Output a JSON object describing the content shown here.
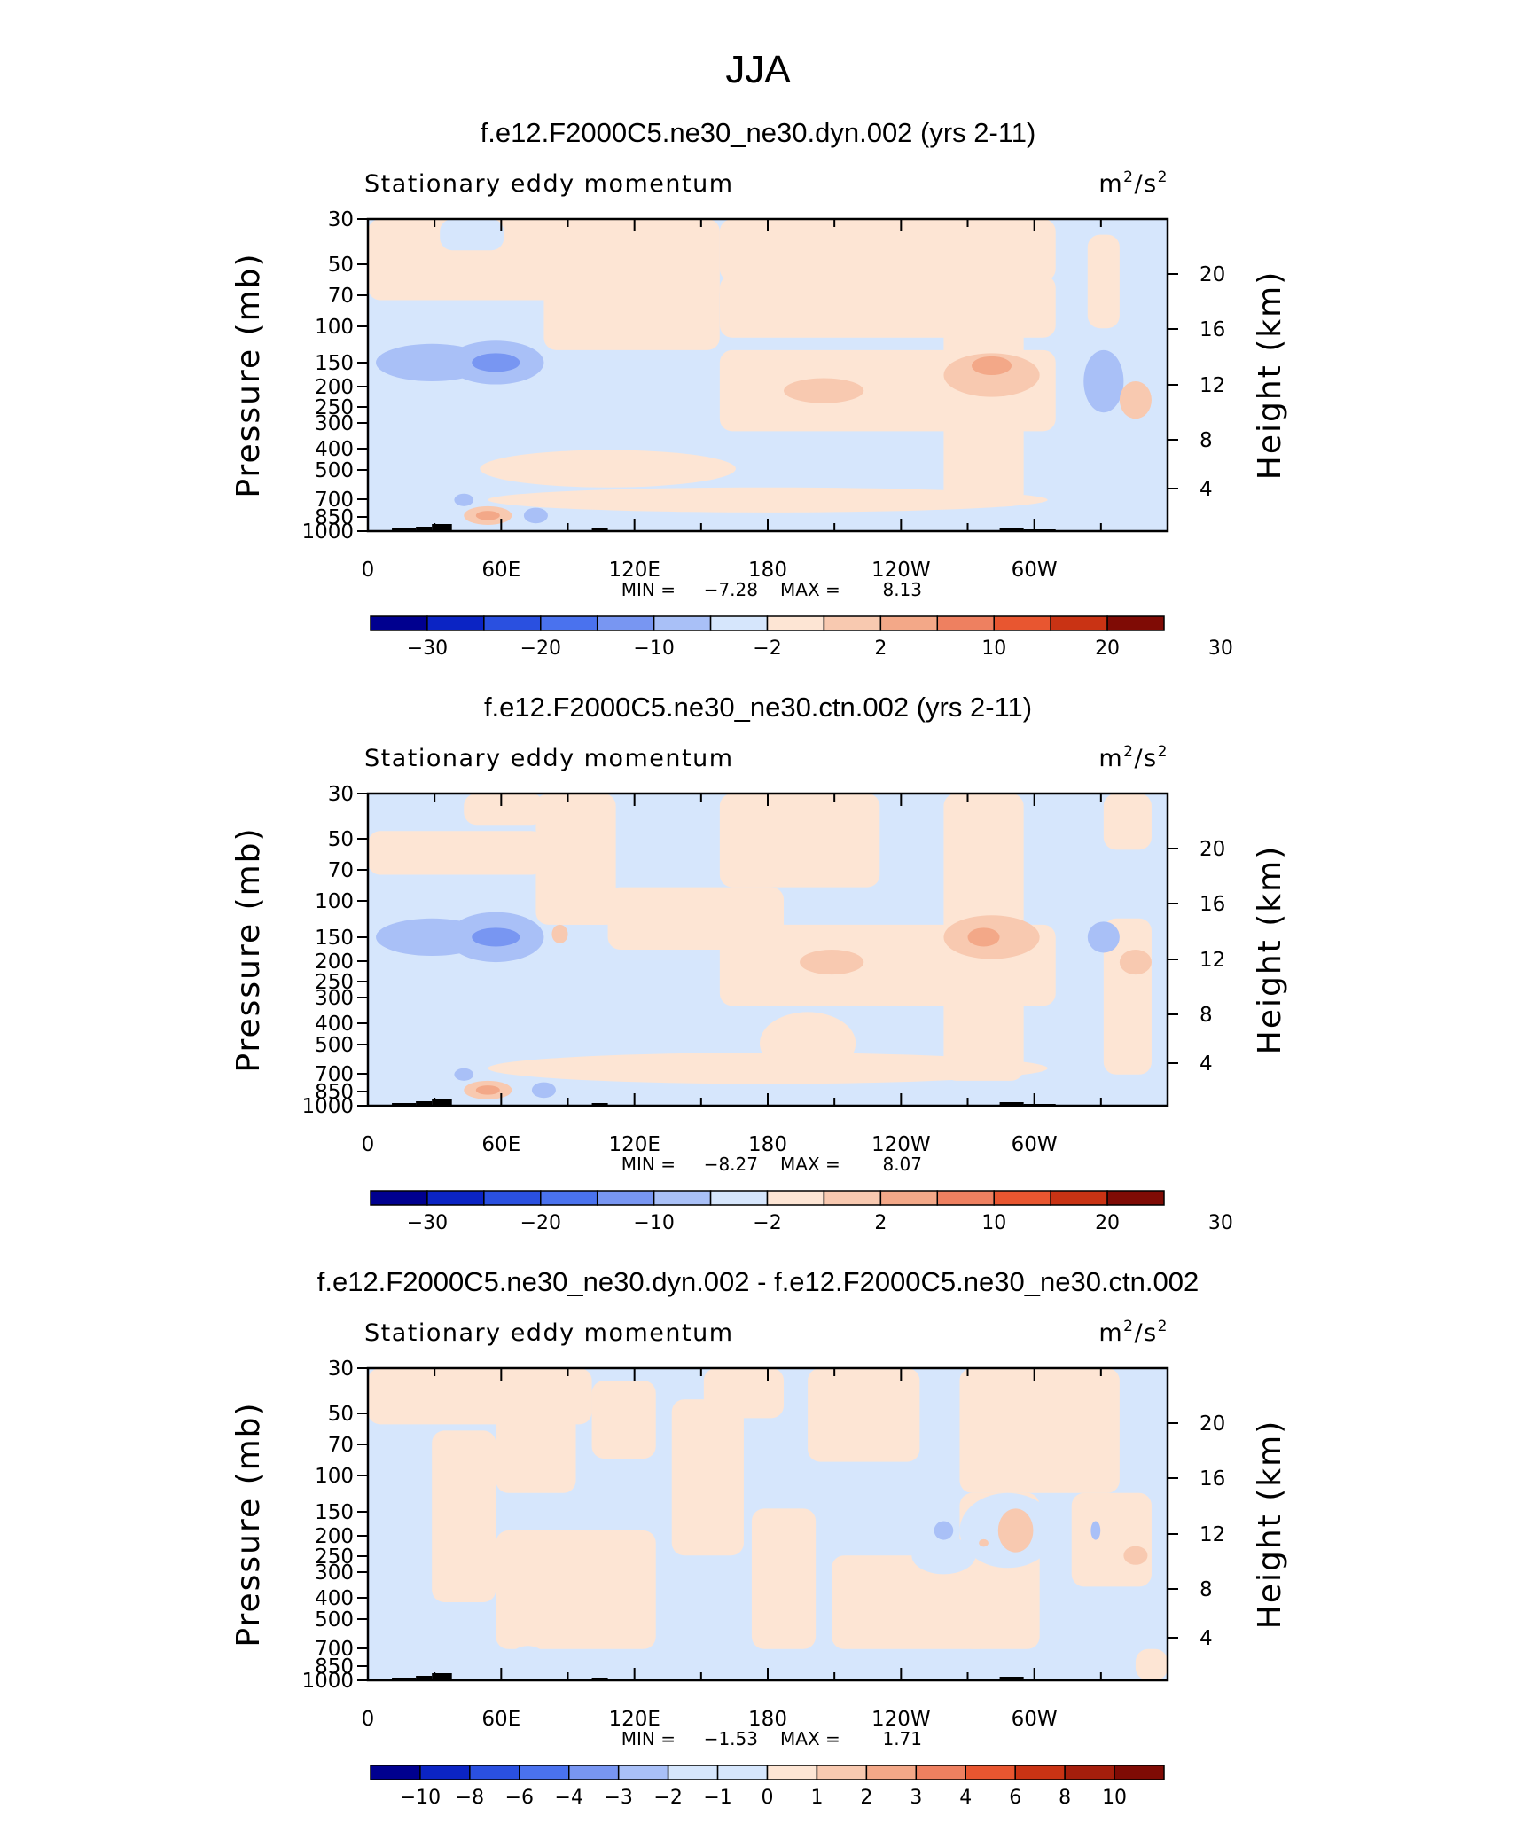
{
  "figure_title": "JJA",
  "colors": {
    "scale": [
      "#00008f",
      "#0b24c4",
      "#2a50e0",
      "#4a72ee",
      "#7896f2",
      "#a9c0f7",
      "#d6e6fc",
      "#fde5d4",
      "#f8c9b0",
      "#f3a888",
      "#ee8060",
      "#e85630",
      "#c93314",
      "#a51e0c",
      "#7f0b05"
    ],
    "orography": "#000000"
  },
  "chart_data": [
    {
      "type": "heatmap",
      "title": "f.e12.F2000C5.ne30_ne30.dyn.002 (yrs 2-11)",
      "left_string": "Stationary eddy momentum",
      "units": "m²/s²",
      "units_base": "m",
      "units_mid": "/s",
      "units_sup": "2",
      "ylabel": "Pressure (mb)",
      "ylabel_right": "Height (km)",
      "x_ticks": [
        "0",
        "60E",
        "120E",
        "180",
        "120W",
        "60W"
      ],
      "y_ticks": [
        "30",
        "50",
        "70",
        "100",
        "150",
        "200",
        "250",
        "300",
        "400",
        "500",
        "700",
        "850",
        "1000"
      ],
      "y_ticks_right": [
        "20",
        "16",
        "12",
        "8",
        "4"
      ],
      "min_label": "MIN =",
      "min": "−7.28",
      "max_label": "MAX =",
      "max": "8.13",
      "colorbar_labels": [
        "−30",
        "−20",
        "−10",
        "−2",
        "2",
        "10",
        "20",
        "30"
      ],
      "colorbar_levels": 14
    },
    {
      "type": "heatmap",
      "title": "f.e12.F2000C5.ne30_ne30.ctn.002 (yrs 2-11)",
      "left_string": "Stationary eddy momentum",
      "units": "m²/s²",
      "units_base": "m",
      "units_mid": "/s",
      "units_sup": "2",
      "ylabel": "Pressure (mb)",
      "ylabel_right": "Height (km)",
      "x_ticks": [
        "0",
        "60E",
        "120E",
        "180",
        "120W",
        "60W"
      ],
      "y_ticks": [
        "30",
        "50",
        "70",
        "100",
        "150",
        "200",
        "250",
        "300",
        "400",
        "500",
        "700",
        "850",
        "1000"
      ],
      "y_ticks_right": [
        "20",
        "16",
        "12",
        "8",
        "4"
      ],
      "min_label": "MIN =",
      "min": "−8.27",
      "max_label": "MAX =",
      "max": "8.07",
      "colorbar_labels": [
        "−30",
        "−20",
        "−10",
        "−2",
        "2",
        "10",
        "20",
        "30"
      ],
      "colorbar_levels": 14
    },
    {
      "type": "heatmap",
      "title": "f.e12.F2000C5.ne30_ne30.dyn.002 - f.e12.F2000C5.ne30_ne30.ctn.002",
      "left_string": "Stationary eddy momentum",
      "units": "m²/s²",
      "units_base": "m",
      "units_mid": "/s",
      "units_sup": "2",
      "ylabel": "Pressure (mb)",
      "ylabel_right": "Height (km)",
      "x_ticks": [
        "0",
        "60E",
        "120E",
        "180",
        "120W",
        "60W"
      ],
      "y_ticks": [
        "30",
        "50",
        "70",
        "100",
        "150",
        "200",
        "250",
        "300",
        "400",
        "500",
        "700",
        "850",
        "1000"
      ],
      "y_ticks_right": [
        "20",
        "16",
        "12",
        "8",
        "4"
      ],
      "min_label": "MIN =",
      "min": "−1.53",
      "max_label": "MAX =",
      "max": "1.71",
      "colorbar_labels": [
        "−10",
        "−8",
        "−6",
        "−4",
        "−3",
        "−2",
        "−1",
        "0",
        "1",
        "2",
        "3",
        "4",
        "6",
        "8",
        "10"
      ],
      "colorbar_levels": 16
    }
  ]
}
